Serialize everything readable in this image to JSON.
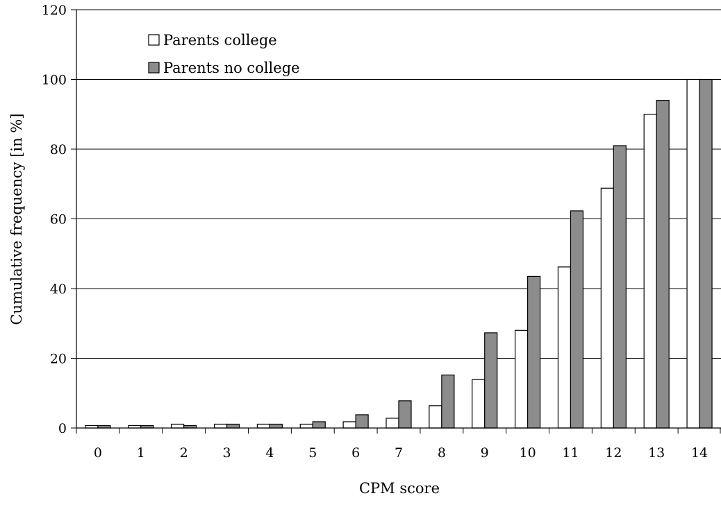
{
  "chart_data": {
    "type": "bar",
    "title": "",
    "xlabel": "CPM score",
    "ylabel": "Cumulative frequency [in %]",
    "ylim": [
      0,
      120
    ],
    "yticks": [
      "0",
      "20",
      "40",
      "60",
      "80",
      "100",
      "120"
    ],
    "grid": "horizontal",
    "legend_position": "top-left",
    "categories": [
      "0",
      "1",
      "2",
      "3",
      "4",
      "5",
      "6",
      "7",
      "8",
      "9",
      "10",
      "11",
      "12",
      "13",
      "14"
    ],
    "series": [
      {
        "name": "Parents college",
        "color": "#ffffff",
        "values": [
          0.7,
          0.7,
          1.1,
          1.1,
          1.1,
          1.1,
          1.8,
          2.8,
          6.4,
          13.9,
          28.0,
          46.2,
          68.8,
          90.0,
          100.0
        ]
      },
      {
        "name": "Parents no college",
        "color": "#8c8c8c",
        "values": [
          0.7,
          0.7,
          0.7,
          1.1,
          1.1,
          1.8,
          3.8,
          7.8,
          15.2,
          27.3,
          43.5,
          62.3,
          81.0,
          94.0,
          100.0
        ]
      }
    ]
  }
}
